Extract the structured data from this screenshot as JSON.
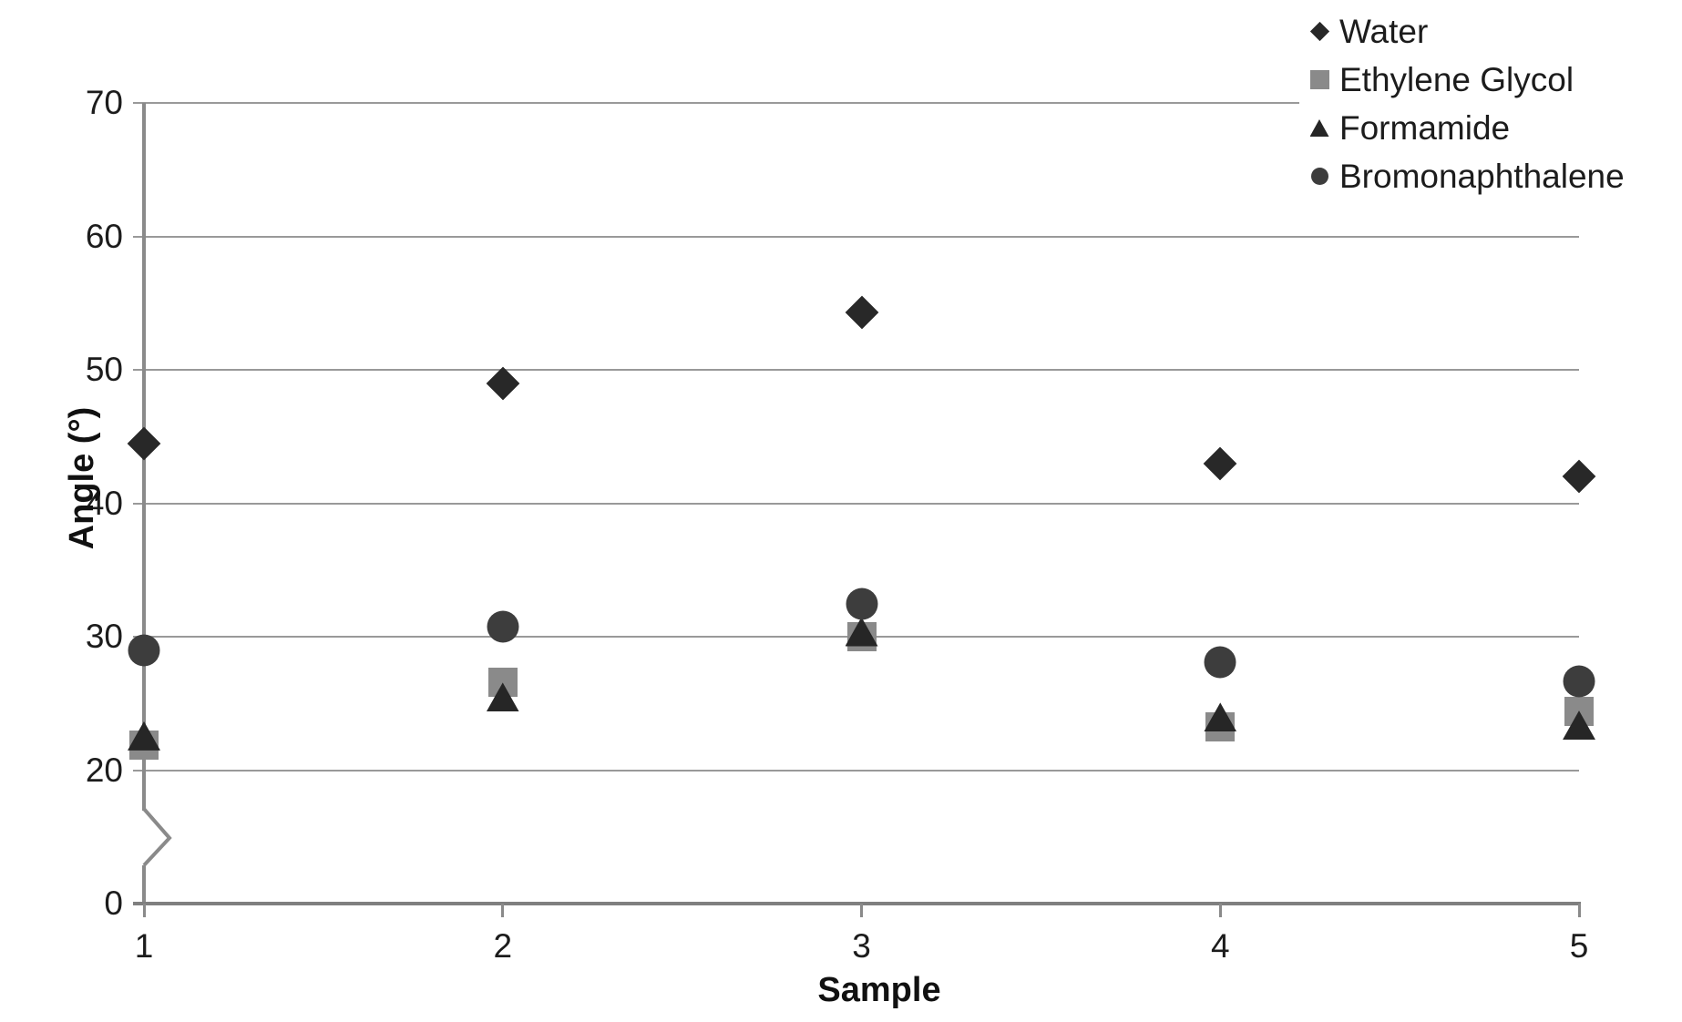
{
  "chart_data": {
    "type": "scatter",
    "title": "",
    "xlabel": "Sample",
    "ylabel": "Angle (°)",
    "x": [
      1,
      2,
      3,
      4,
      5
    ],
    "yticks": [
      70,
      60,
      50,
      40,
      30,
      20,
      0
    ],
    "axis_break": "y-axis break between 0 and 20",
    "grid": "horizontal gridlines on",
    "legend_position": "top-right",
    "series": [
      {
        "name": "Water",
        "marker": "diamond",
        "color": "#282828",
        "values": [
          44.5,
          49.0,
          54.3,
          43.0,
          42.0
        ]
      },
      {
        "name": "Ethylene Glycol",
        "marker": "square",
        "color": "#8a8a8a",
        "values": [
          21.9,
          26.6,
          30.0,
          23.3,
          24.4
        ]
      },
      {
        "name": "Formamide",
        "marker": "triangle",
        "color": "#262626",
        "values": [
          22.6,
          25.5,
          30.4,
          24.0,
          23.4
        ]
      },
      {
        "name": "Bromonaphthalene",
        "marker": "circle",
        "color": "#3d3d3d",
        "values": [
          29.0,
          30.8,
          32.5,
          28.1,
          26.7
        ]
      }
    ]
  }
}
